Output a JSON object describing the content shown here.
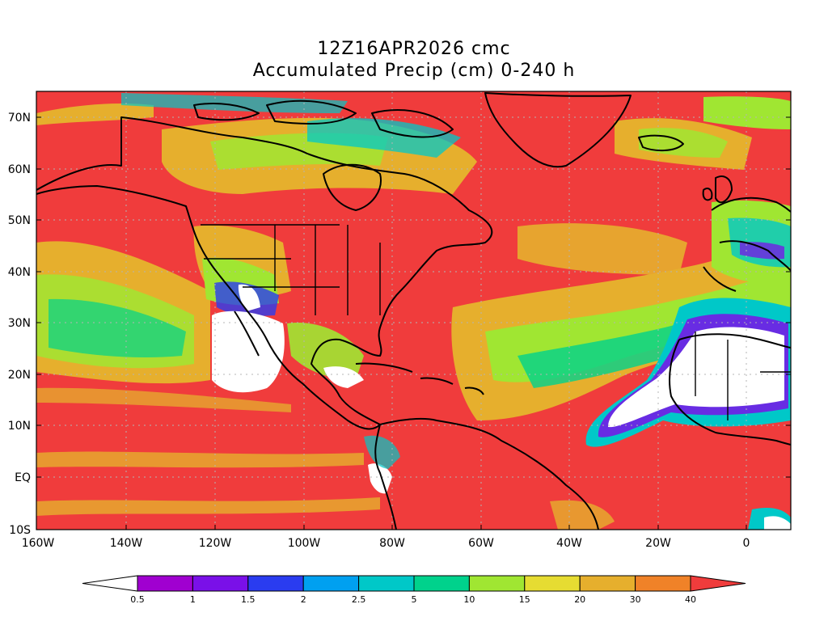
{
  "title": {
    "line1": "12Z16APR2026 cmc",
    "line2": "Accumulated Precip (cm) 0-240 h"
  },
  "map": {
    "lat_labels": [
      "70N",
      "60N",
      "50N",
      "40N",
      "30N",
      "20N",
      "10N",
      "EQ",
      "10S"
    ],
    "lon_labels": [
      "160W",
      "140W",
      "120W",
      "100W",
      "80W",
      "60W",
      "40W",
      "20W",
      "0"
    ],
    "region": "North America / Atlantic",
    "lon_range": [
      -160,
      10
    ],
    "lat_range": [
      -10,
      75
    ]
  },
  "colorbar": {
    "labels": [
      "0.5",
      "1",
      "1.5",
      "2",
      "2.5",
      "5",
      "10",
      "15",
      "20",
      "30",
      "40"
    ],
    "colors": [
      "#ffffff",
      "#a000d0",
      "#7a10e8",
      "#2a3cf0",
      "#00a0f0",
      "#00c8c8",
      "#00d28c",
      "#a0e632",
      "#e6dc32",
      "#e6af2d",
      "#f08228",
      "#f03c3c"
    ]
  }
}
